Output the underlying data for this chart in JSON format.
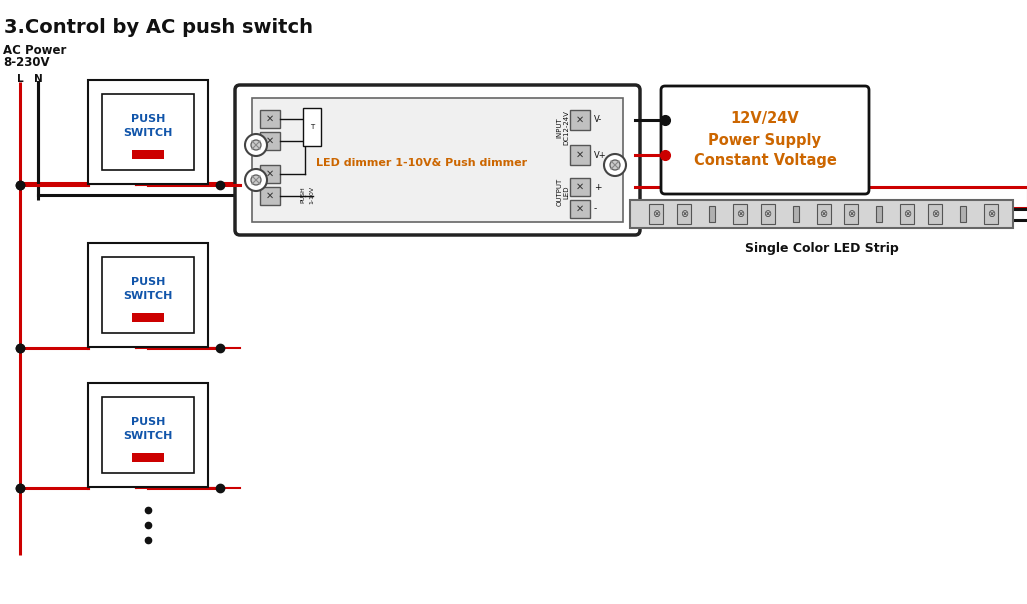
{
  "title": "3.Control by AC push switch",
  "ac_power_label1": "AC Power",
  "ac_power_label2": "8-230V",
  "L_label": "L",
  "N_label": "N",
  "push_switch_label": "PUSH\nSWITCH",
  "dimmer_label": "LED dimmer 1-10V& Push dimmer",
  "input_label": "INPUT\nDC12-24V",
  "output_label": "OUTPUT\nLED",
  "v_minus": "V-",
  "v_plus": "V+",
  "plus": "+",
  "minus": "-",
  "power_supply_label": "12V/24V\nPower Supply\nConstant Voltage",
  "led_strip_label": "Single Color LED Strip",
  "red": "#cc0000",
  "black": "#111111",
  "orange": "#cc6600",
  "blue_sw": "#1155aa",
  "bg": "#ffffff"
}
